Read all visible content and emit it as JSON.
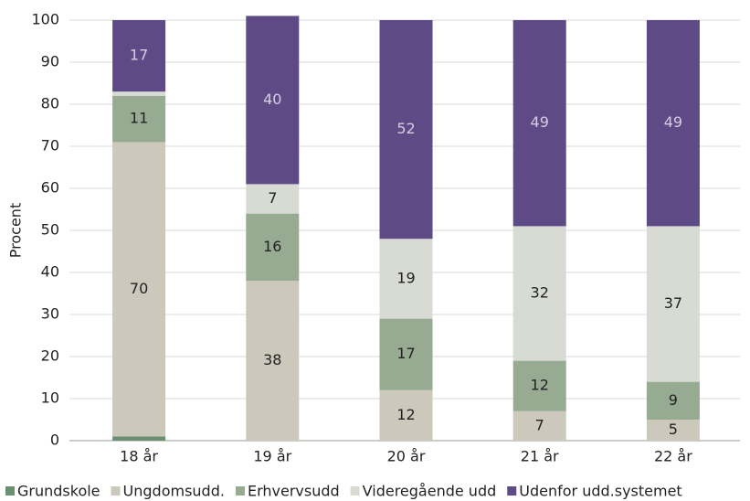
{
  "chart_data": {
    "type": "stacked_bar",
    "y_axis_label": "Procent",
    "categories": [
      "18 år",
      "19 år",
      "20 år",
      "21 år",
      "22 år"
    ],
    "series": [
      {
        "name": "Grundskole",
        "color": "#6b8f71",
        "values": [
          1,
          0,
          0,
          0,
          0
        ]
      },
      {
        "name": "Ungdomsudd.",
        "color": "#ccc8bc",
        "values": [
          70,
          38,
          12,
          7,
          5
        ]
      },
      {
        "name": "Erhvervsudd",
        "color": "#97ab93",
        "values": [
          11,
          16,
          17,
          12,
          9
        ]
      },
      {
        "name": "Videregående udd",
        "color": "#d8dbd3",
        "values": [
          1,
          7,
          19,
          32,
          37
        ]
      },
      {
        "name": "Udenfor udd.systemet",
        "color": "#5e4a85",
        "values": [
          17,
          40,
          52,
          49,
          49
        ]
      }
    ],
    "ylim": [
      0,
      100
    ],
    "yticks": [
      0,
      10,
      20,
      30,
      40,
      50,
      60,
      70,
      80,
      90,
      100
    ],
    "grid": true,
    "legend": "bottom"
  }
}
